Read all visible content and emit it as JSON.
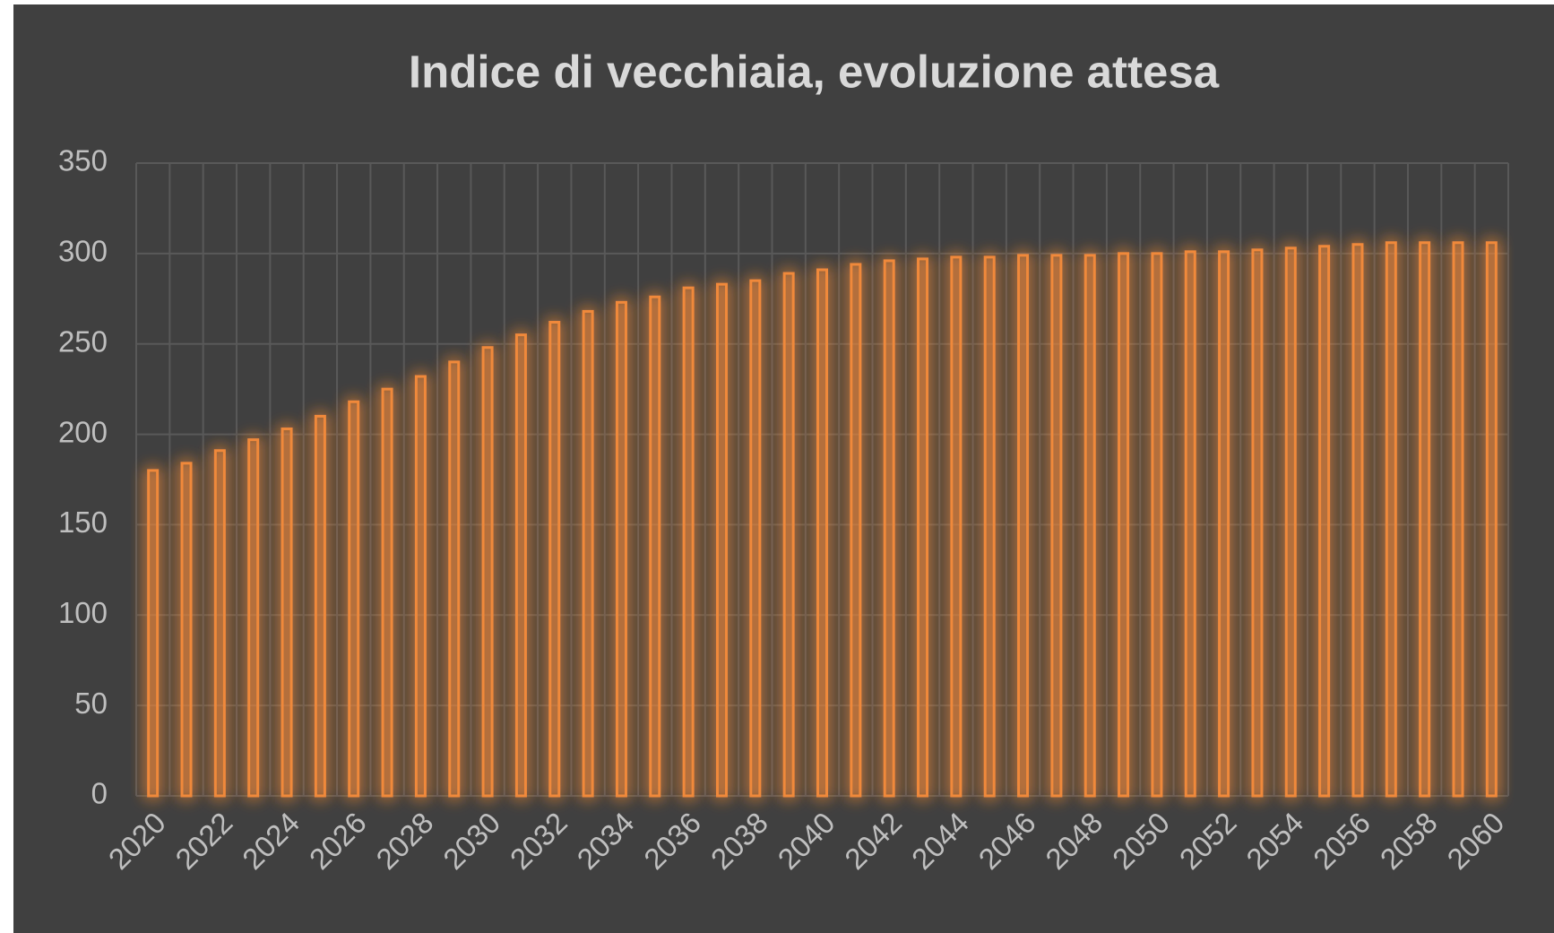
{
  "chart_data": {
    "type": "bar",
    "title": "Indice di vecchiaia, evoluzione attesa",
    "categories": [
      "2020",
      null,
      "2022",
      null,
      "2024",
      null,
      "2026",
      null,
      "2028",
      null,
      "2030",
      null,
      "2032",
      null,
      "2034",
      null,
      "2036",
      null,
      "2038",
      null,
      "2040",
      null,
      "2042",
      null,
      "2044",
      null,
      "2046",
      null,
      "2048",
      null,
      "2050",
      null,
      "2052",
      null,
      "2054",
      null,
      "2056",
      null,
      "2058",
      null,
      "2060"
    ],
    "values": [
      180,
      184,
      191,
      197,
      203,
      210,
      218,
      225,
      232,
      240,
      248,
      255,
      262,
      268,
      273,
      276,
      281,
      283,
      285,
      289,
      291,
      294,
      296,
      297,
      298,
      298,
      299,
      299,
      299,
      300,
      300,
      301,
      301,
      302,
      303,
      304,
      305,
      306,
      306,
      306,
      306
    ],
    "color": "#f0893a",
    "ylim": [
      0,
      350
    ],
    "yticks": [
      0,
      50,
      100,
      150,
      200,
      250,
      300,
      350
    ],
    "grid": true
  }
}
